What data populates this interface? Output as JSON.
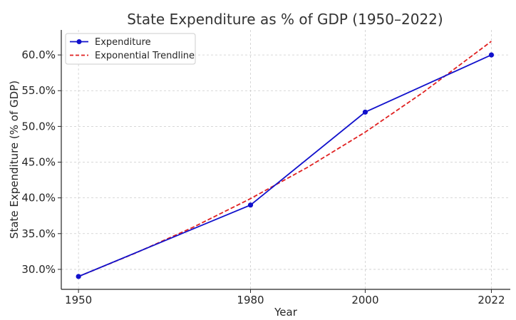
{
  "chart_data": {
    "type": "line",
    "title": "State Expenditure as % of GDP (1950–2022)",
    "xlabel": "Year",
    "ylabel": "State Expenditure (% of GDP)",
    "x": [
      1950,
      1980,
      2000,
      2022
    ],
    "x_tick_labels": [
      "1950",
      "1980",
      "2000",
      "2022"
    ],
    "xlim": [
      1947,
      2025.3
    ],
    "ylim": [
      27.2,
      63.5
    ],
    "y_ticks": [
      30,
      35,
      40,
      45,
      50,
      55,
      60
    ],
    "y_tick_labels": [
      "30.0%",
      "35.0%",
      "40.0%",
      "45.0%",
      "50.0%",
      "55.0%",
      "60.0%"
    ],
    "grid": true,
    "legend_position": "top-left",
    "series": [
      {
        "name": "Expenditure",
        "style": "solid-line-with-markers",
        "color": "#1111cc",
        "values": [
          29,
          39,
          52,
          60
        ]
      },
      {
        "name": "Exponential Trendline",
        "style": "dashed-line",
        "color": "#e02020",
        "x": [
          1950,
          1960,
          1970,
          1980,
          1990,
          2000,
          2010,
          2022
        ],
        "values": [
          29.0,
          32.3,
          35.9,
          39.9,
          44.3,
          49.2,
          54.7,
          61.9
        ]
      }
    ]
  }
}
